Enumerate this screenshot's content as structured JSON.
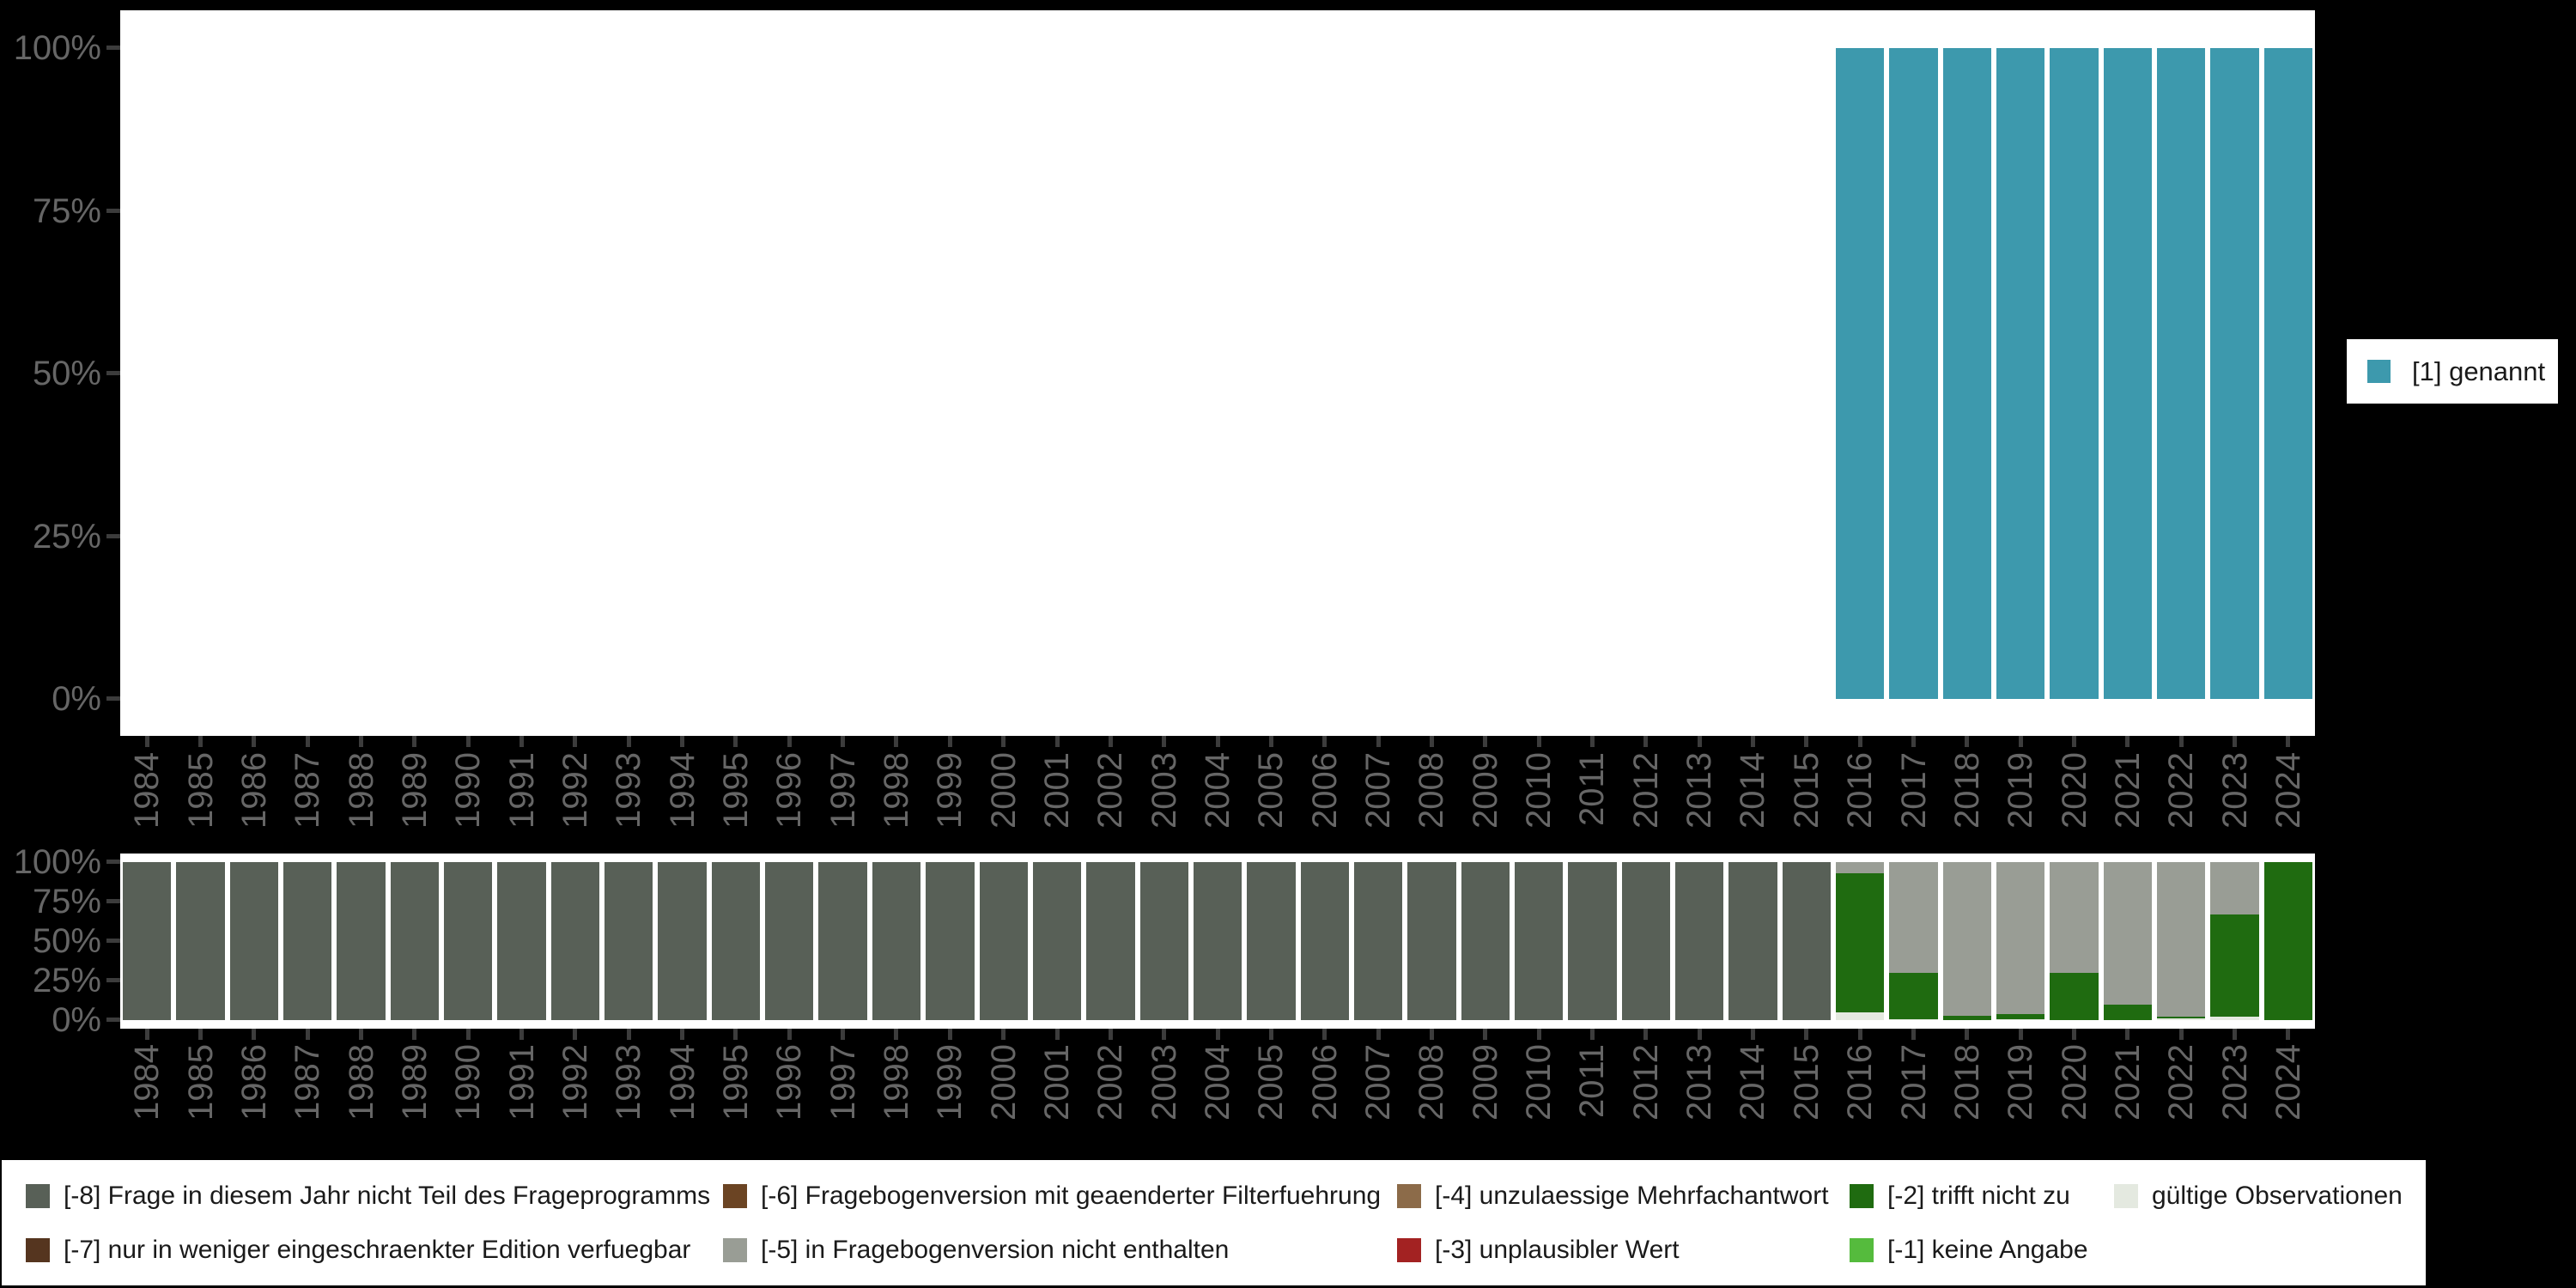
{
  "figure": {
    "background": "#000000",
    "panel_background": "#ffffff",
    "axis_label_color": "#666666",
    "tick_color": "#3c3c3c"
  },
  "axes": {
    "y_tick_labels": [
      "100%",
      "75%",
      "50%",
      "25%",
      "0%"
    ]
  },
  "top_legend": {
    "items": [
      {
        "label": "[1] genannt",
        "color": "#3d99ad"
      }
    ]
  },
  "bottom_legend": {
    "items": [
      {
        "label": "[-8] Frage in diesem Jahr nicht Teil des Frageprogramms",
        "color": "#586057"
      },
      {
        "label": "[-7] nur in weniger eingeschraenkter Edition verfuegbar",
        "color": "#55351f"
      },
      {
        "label": "[-6] Fragebogenversion mit geaenderter Filterfuehrung",
        "color": "#6b4423"
      },
      {
        "label": "[-5] in Fragebogenversion nicht enthalten",
        "color": "#999d95"
      },
      {
        "label": "[-4] unzulaessige Mehrfachantwort",
        "color": "#8c6b49"
      },
      {
        "label": "[-3] unplausibler Wert",
        "color": "#a32222"
      },
      {
        "label": "[-2] trifft nicht zu",
        "color": "#1f6b10"
      },
      {
        "label": "[-1] keine Angabe",
        "color": "#55bb3d"
      },
      {
        "label": "gültige Observationen",
        "color": "#e4e9e0"
      }
    ]
  },
  "chart_data": [
    {
      "type": "bar",
      "stacked": true,
      "title": "",
      "xlabel": "",
      "ylabel": "",
      "ylim": [
        0,
        100
      ],
      "y_ticks": [
        "0%",
        "25%",
        "50%",
        "75%",
        "100%"
      ],
      "grid": false,
      "legend_position": "right",
      "unit": "percent",
      "categories": [
        "1984",
        "1985",
        "1986",
        "1987",
        "1988",
        "1989",
        "1990",
        "1991",
        "1992",
        "1993",
        "1994",
        "1995",
        "1996",
        "1997",
        "1998",
        "1999",
        "2000",
        "2001",
        "2002",
        "2003",
        "2004",
        "2005",
        "2006",
        "2007",
        "2008",
        "2009",
        "2010",
        "2011",
        "2012",
        "2013",
        "2014",
        "2015",
        "2016",
        "2017",
        "2018",
        "2019",
        "2020",
        "2021",
        "2022",
        "2023",
        "2024"
      ],
      "series": [
        {
          "name": "[1] genannt",
          "color": "#3d99ad",
          "values": [
            0,
            0,
            0,
            0,
            0,
            0,
            0,
            0,
            0,
            0,
            0,
            0,
            0,
            0,
            0,
            0,
            0,
            0,
            0,
            0,
            0,
            0,
            0,
            0,
            0,
            0,
            0,
            0,
            0,
            0,
            0,
            0,
            100,
            100,
            100,
            100,
            100,
            100,
            100,
            100,
            100
          ]
        }
      ]
    },
    {
      "type": "bar",
      "stacked": true,
      "title": "",
      "xlabel": "",
      "ylabel": "",
      "ylim": [
        0,
        100
      ],
      "y_ticks": [
        "0%",
        "25%",
        "50%",
        "75%",
        "100%"
      ],
      "grid": false,
      "legend_position": "bottom",
      "unit": "percent",
      "categories": [
        "1984",
        "1985",
        "1986",
        "1987",
        "1988",
        "1989",
        "1990",
        "1991",
        "1992",
        "1993",
        "1994",
        "1995",
        "1996",
        "1997",
        "1998",
        "1999",
        "2000",
        "2001",
        "2002",
        "2003",
        "2004",
        "2005",
        "2006",
        "2007",
        "2008",
        "2009",
        "2010",
        "2011",
        "2012",
        "2013",
        "2014",
        "2015",
        "2016",
        "2017",
        "2018",
        "2019",
        "2020",
        "2021",
        "2022",
        "2023",
        "2024"
      ],
      "series": [
        {
          "name": "[-8] Frage in diesem Jahr nicht Teil des Frageprogramms",
          "color": "#586057",
          "values": [
            100,
            100,
            100,
            100,
            100,
            100,
            100,
            100,
            100,
            100,
            100,
            100,
            100,
            100,
            100,
            100,
            100,
            100,
            100,
            100,
            100,
            100,
            100,
            100,
            100,
            100,
            100,
            100,
            100,
            100,
            100,
            100,
            0,
            0,
            0,
            0,
            0,
            0,
            0,
            0,
            0
          ]
        },
        {
          "name": "[-5] in Fragebogenversion nicht enthalten",
          "color": "#999d95",
          "values": [
            0,
            0,
            0,
            0,
            0,
            0,
            0,
            0,
            0,
            0,
            0,
            0,
            0,
            0,
            0,
            0,
            0,
            0,
            0,
            0,
            0,
            0,
            0,
            0,
            0,
            0,
            0,
            0,
            0,
            0,
            0,
            0,
            7,
            70,
            97.5,
            96,
            70,
            90,
            98,
            33,
            0
          ]
        },
        {
          "name": "[-2] trifft nicht zu",
          "color": "#1f6b10",
          "values": [
            0,
            0,
            0,
            0,
            0,
            0,
            0,
            0,
            0,
            0,
            0,
            0,
            0,
            0,
            0,
            0,
            0,
            0,
            0,
            0,
            0,
            0,
            0,
            0,
            0,
            0,
            0,
            0,
            0,
            0,
            0,
            0,
            88,
            29.5,
            2.5,
            3.5,
            30,
            10,
            1,
            65,
            100
          ]
        },
        {
          "name": "gültige Observationen",
          "color": "#e4e9e0",
          "values": [
            0,
            0,
            0,
            0,
            0,
            0,
            0,
            0,
            0,
            0,
            0,
            0,
            0,
            0,
            0,
            0,
            0,
            0,
            0,
            0,
            0,
            0,
            0,
            0,
            0,
            0,
            0,
            0,
            0,
            0,
            0,
            0,
            5,
            0.5,
            0,
            0.5,
            0,
            0,
            1,
            2,
            0
          ]
        }
      ]
    }
  ]
}
